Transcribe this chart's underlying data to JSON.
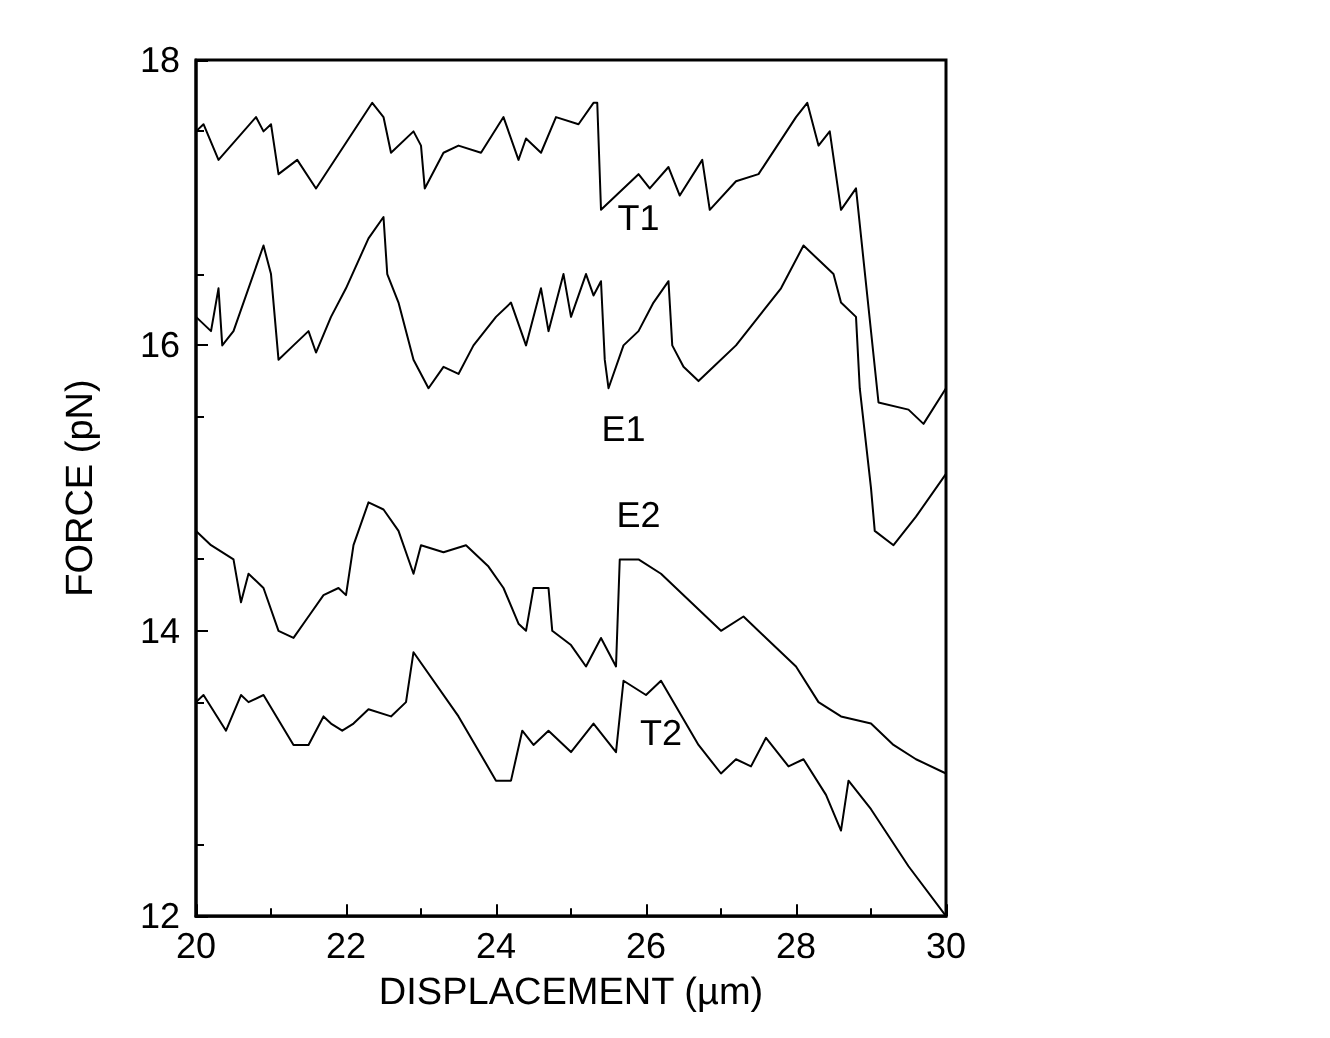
{
  "chart_data": {
    "type": "line",
    "xlabel": "DISPLACEMENT (µm)",
    "ylabel": "FORCE (pN)",
    "xlim": [
      20,
      30
    ],
    "ylim": [
      12,
      18
    ],
    "xticks": [
      20,
      22,
      24,
      26,
      28,
      30
    ],
    "yticks": [
      12,
      14,
      16,
      18
    ],
    "grid": false,
    "legend": false,
    "marker": "none",
    "line_style": "solid",
    "series": [
      {
        "name": "T1",
        "color": "#000000",
        "x": [
          20,
          20.1,
          20.3,
          20.8,
          20.9,
          21.0,
          21.1,
          21.35,
          21.6,
          22.35,
          22.5,
          22.6,
          22.9,
          23.0,
          23.05,
          23.3,
          23.5,
          23.8,
          24.1,
          24.3,
          24.4,
          24.6,
          24.8,
          25.1,
          25.3,
          25.35,
          25.4,
          25.9,
          26.05,
          26.3,
          26.45,
          26.75,
          26.85,
          27.2,
          27.5,
          28.0,
          28.15,
          28.3,
          28.45,
          28.6,
          28.8,
          28.9,
          29.1,
          29.5,
          29.7,
          30
        ],
        "values": [
          17.5,
          17.55,
          17.3,
          17.6,
          17.5,
          17.55,
          17.2,
          17.3,
          17.1,
          17.7,
          17.6,
          17.35,
          17.5,
          17.4,
          17.1,
          17.35,
          17.4,
          17.35,
          17.6,
          17.3,
          17.45,
          17.35,
          17.6,
          17.55,
          17.7,
          17.7,
          16.95,
          17.2,
          17.1,
          17.25,
          17.05,
          17.3,
          16.95,
          17.15,
          17.2,
          17.6,
          17.7,
          17.4,
          17.5,
          16.95,
          17.1,
          16.6,
          15.6,
          15.55,
          15.45,
          15.7
        ]
      },
      {
        "name": "E1",
        "color": "#000000",
        "x": [
          20,
          20.2,
          20.3,
          20.35,
          20.5,
          20.9,
          21.0,
          21.1,
          21.3,
          21.5,
          21.6,
          21.8,
          22.0,
          22.3,
          22.5,
          22.55,
          22.7,
          22.9,
          23.1,
          23.3,
          23.5,
          23.7,
          24.0,
          24.2,
          24.4,
          24.6,
          24.7,
          24.9,
          25.0,
          25.2,
          25.3,
          25.4,
          25.45,
          25.5,
          25.7,
          25.9,
          26.1,
          26.3,
          26.35,
          26.5,
          26.7,
          26.9,
          27.2,
          27.5,
          27.8,
          28.1,
          28.3,
          28.5,
          28.6,
          28.8,
          28.85,
          29.0,
          29.05,
          29.3,
          29.6,
          30
        ],
        "values": [
          16.2,
          16.1,
          16.4,
          16.0,
          16.1,
          16.7,
          16.5,
          15.9,
          16.0,
          16.1,
          15.95,
          16.2,
          16.4,
          16.75,
          16.9,
          16.5,
          16.3,
          15.9,
          15.7,
          15.85,
          15.8,
          16.0,
          16.2,
          16.3,
          16.0,
          16.4,
          16.1,
          16.5,
          16.2,
          16.5,
          16.35,
          16.45,
          15.9,
          15.7,
          16.0,
          16.1,
          16.3,
          16.45,
          16.0,
          15.85,
          15.75,
          15.85,
          16.0,
          16.2,
          16.4,
          16.7,
          16.6,
          16.5,
          16.3,
          16.2,
          15.7,
          15.0,
          14.7,
          14.6,
          14.8,
          15.1
        ]
      },
      {
        "name": "E2",
        "color": "#000000",
        "x": [
          20,
          20.2,
          20.5,
          20.6,
          20.7,
          20.9,
          21.1,
          21.3,
          21.5,
          21.7,
          21.9,
          22.0,
          22.1,
          22.3,
          22.5,
          22.7,
          22.9,
          23.0,
          23.3,
          23.6,
          23.9,
          24.1,
          24.3,
          24.4,
          24.5,
          24.7,
          24.75,
          25.0,
          25.2,
          25.4,
          25.6,
          25.65,
          25.9,
          26.2,
          26.6,
          27.0,
          27.3,
          27.6,
          28.0,
          28.3,
          28.6,
          29.0,
          29.3,
          29.6,
          30
        ],
        "values": [
          14.7,
          14.6,
          14.5,
          14.2,
          14.4,
          14.3,
          14.0,
          13.95,
          14.1,
          14.25,
          14.3,
          14.25,
          14.6,
          14.9,
          14.85,
          14.7,
          14.4,
          14.6,
          14.55,
          14.6,
          14.45,
          14.3,
          14.05,
          14.0,
          14.3,
          14.3,
          14.0,
          13.9,
          13.75,
          13.95,
          13.75,
          14.5,
          14.5,
          14.4,
          14.2,
          14.0,
          14.1,
          13.95,
          13.75,
          13.5,
          13.4,
          13.35,
          13.2,
          13.1,
          13.0
        ]
      },
      {
        "name": "T2",
        "color": "#000000",
        "x": [
          20,
          20.1,
          20.4,
          20.6,
          20.7,
          20.9,
          21.3,
          21.5,
          21.7,
          21.8,
          21.95,
          22.1,
          22.3,
          22.6,
          22.8,
          22.9,
          23.5,
          24.0,
          24.2,
          24.35,
          24.5,
          24.7,
          25.0,
          25.3,
          25.6,
          25.7,
          26.0,
          26.2,
          26.7,
          27.0,
          27.2,
          27.4,
          27.6,
          27.9,
          28.1,
          28.4,
          28.6,
          28.7,
          29.0,
          29.5,
          30
        ],
        "values": [
          13.5,
          13.55,
          13.3,
          13.55,
          13.5,
          13.55,
          13.2,
          13.2,
          13.4,
          13.35,
          13.3,
          13.35,
          13.45,
          13.4,
          13.5,
          13.85,
          13.4,
          12.95,
          12.95,
          13.3,
          13.2,
          13.3,
          13.15,
          13.35,
          13.15,
          13.65,
          13.55,
          13.65,
          13.2,
          13.0,
          13.1,
          13.05,
          13.25,
          13.05,
          13.1,
          12.85,
          12.6,
          12.95,
          12.75,
          12.35,
          12.0
        ]
      }
    ]
  }
}
